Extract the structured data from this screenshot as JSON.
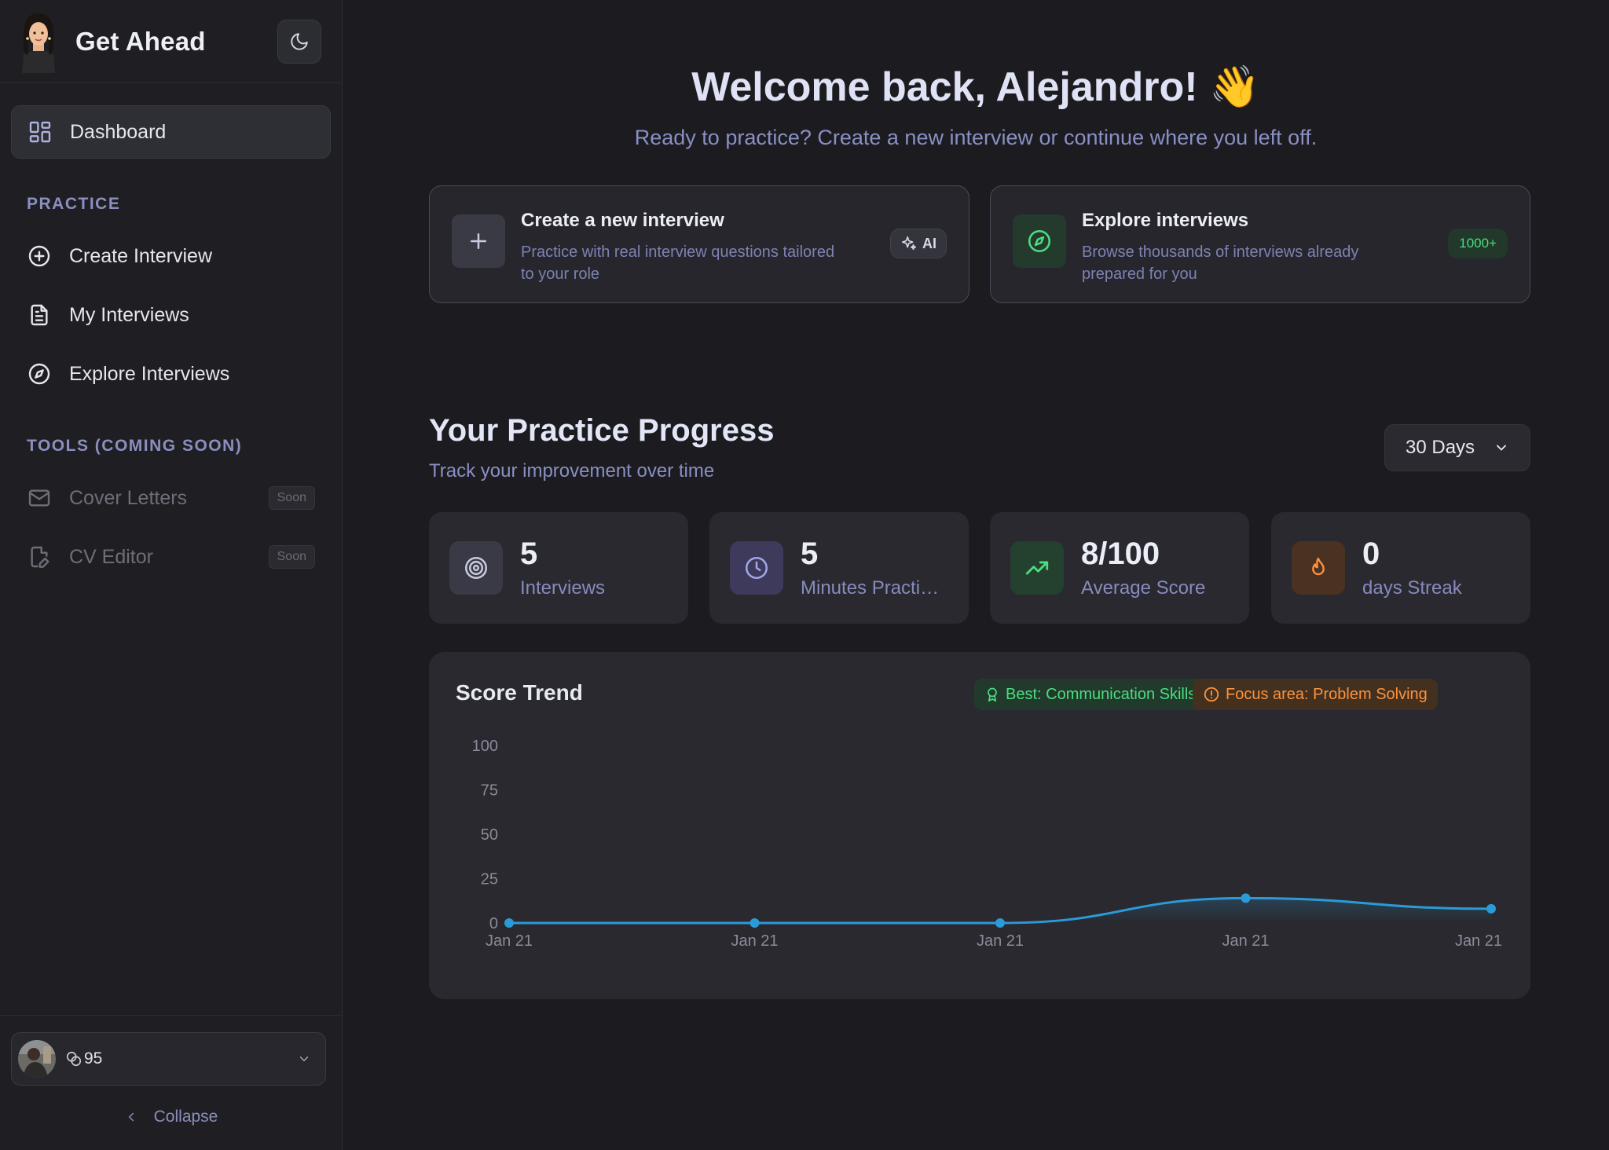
{
  "sidebar": {
    "brand": "Get Ahead",
    "nav": [
      {
        "label": "Dashboard",
        "icon": "dashboard-grid-icon",
        "active": true
      }
    ],
    "practice_title": "PRACTICE",
    "practice_items": [
      {
        "label": "Create Interview",
        "icon": "plus-circle-icon"
      },
      {
        "label": "My Interviews",
        "icon": "document-icon"
      },
      {
        "label": "Explore Interviews",
        "icon": "compass-icon"
      }
    ],
    "tools_title": "TOOLS (COMING SOON)",
    "tools_items": [
      {
        "label": "Cover Letters",
        "icon": "mail-icon",
        "badge": "Soon"
      },
      {
        "label": "CV Editor",
        "icon": "file-edit-icon",
        "badge": "Soon"
      }
    ],
    "user": {
      "credits": "95"
    },
    "collapse_label": "Collapse"
  },
  "main": {
    "welcome": "Welcome back, Alejandro! 👋",
    "welcome_sub": "Ready to practice? Create a new interview or continue where you left off.",
    "create_card": {
      "title": "Create a new interview",
      "desc_line1": "Practice with real interview questions tailored",
      "desc_line2": "to your role",
      "badge": "AI"
    },
    "explore_card": {
      "title": "Explore interviews",
      "desc_line1": "Browse thousands of interviews already",
      "desc_line2": "prepared for you",
      "badge": "1000+"
    },
    "progress": {
      "title": "Your Practice Progress",
      "subtitle": "Track your improvement over time",
      "range": "30 Days"
    },
    "stats": [
      {
        "value": "5",
        "label": "Interviews",
        "icon": "target-icon",
        "color": "#3a3a46"
      },
      {
        "value": "5",
        "label": "Minutes Practiced",
        "icon": "clock-icon",
        "color": "#3d3a5c"
      },
      {
        "value": "8/100",
        "label": "Average Score",
        "icon": "trending-up-icon",
        "color": "#24402f"
      },
      {
        "value": "0",
        "label": "days Streak",
        "icon": "flame-icon",
        "color": "#4a3222"
      }
    ],
    "chart": {
      "title": "Score Trend",
      "best_label": "Best: Communication Skills",
      "focus_label": "Focus area: Problem Solving"
    }
  },
  "colors": {
    "accent_green": "#4ade80",
    "accent_orange": "#fb923c",
    "line_blue": "#2b9bd8",
    "muted_purple": "#8a8fc4"
  },
  "chart_data": {
    "type": "line",
    "title": "Score Trend",
    "categories": [
      "Jan 21",
      "Jan 21",
      "Jan 21",
      "Jan 21",
      "Jan 21"
    ],
    "values": [
      0,
      0,
      0,
      14,
      8
    ],
    "ylim": [
      0,
      100
    ],
    "yticks": [
      0,
      25,
      50,
      75,
      100
    ],
    "grid": false,
    "legend": "none"
  }
}
